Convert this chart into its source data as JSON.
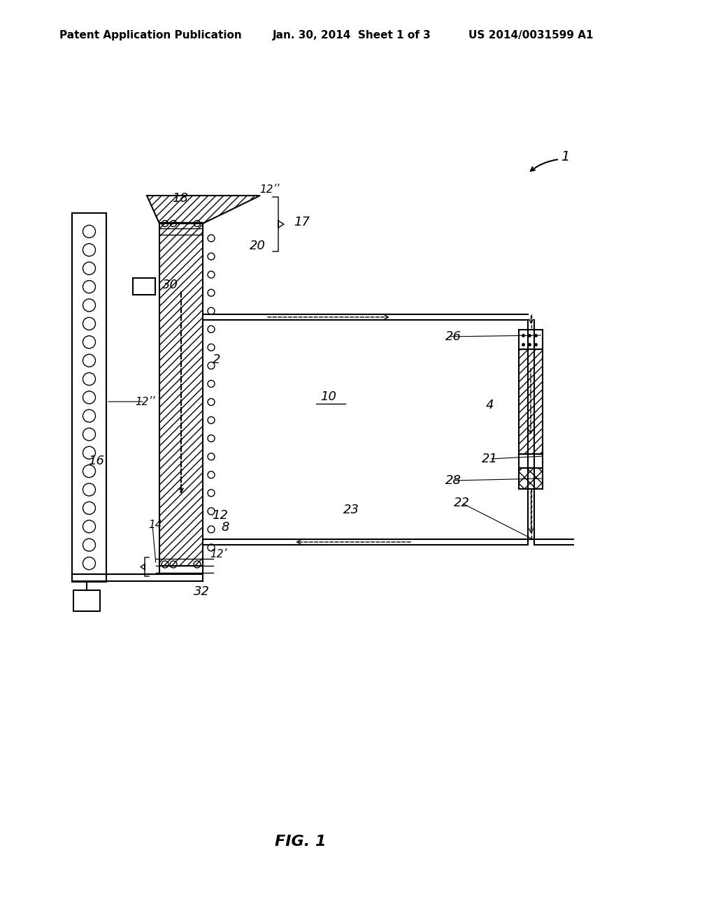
{
  "header_left": "Patent Application Publication",
  "header_mid": "Jan. 30, 2014  Sheet 1 of 3",
  "header_right": "US 2014/0031599 A1",
  "fig_label": "FIG. 1",
  "bg_color": "#ffffff",
  "line_color": "#000000",
  "label_fontsize": 13,
  "header_fontsize": 11,
  "figlabel_fontsize": 16
}
